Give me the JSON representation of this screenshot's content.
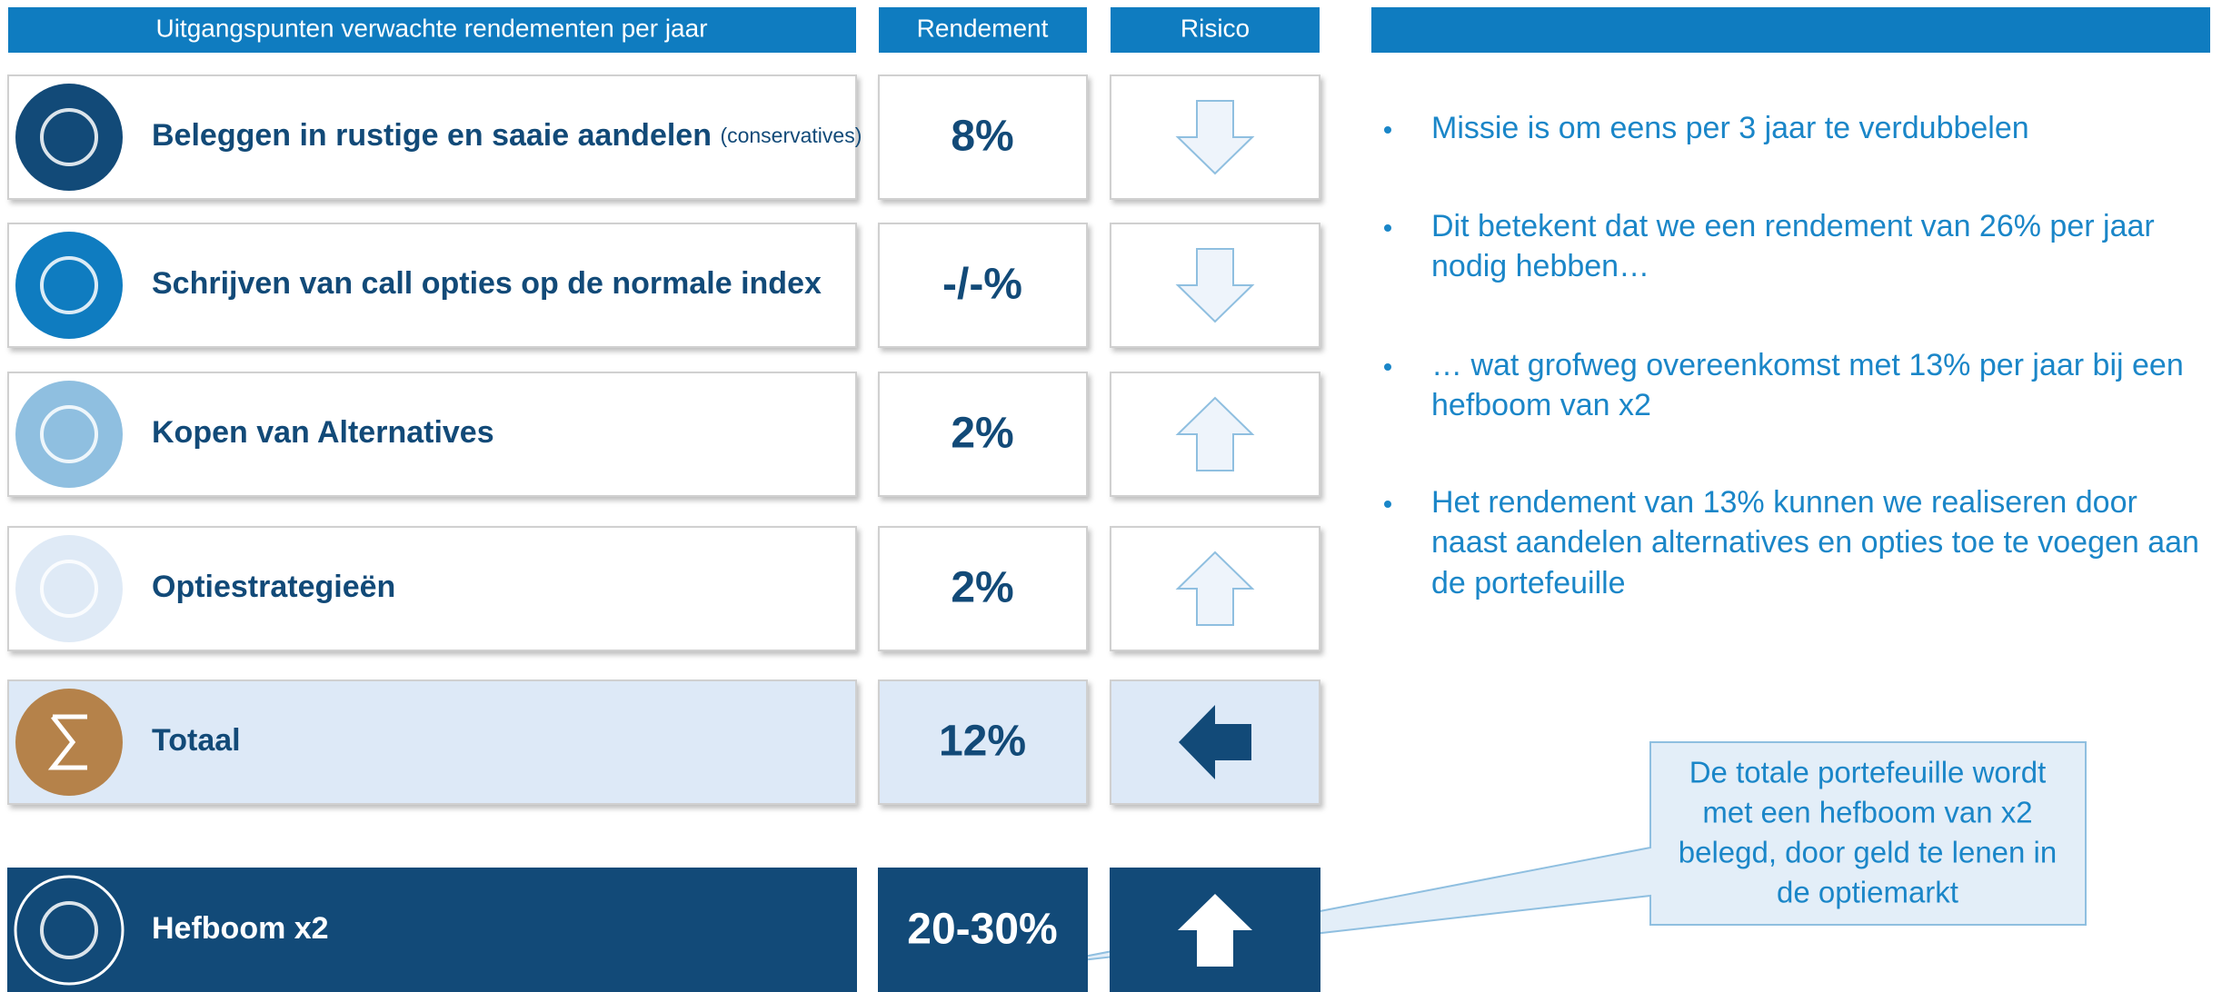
{
  "headers": [
    "Uitgangspunten verwachte rendementen per jaar",
    "Rendement",
    "Risico"
  ],
  "rows": [
    {
      "label": "Beleggen in rustige en saaie aandelen",
      "note": "(conservatives)",
      "value": "8%"
    },
    {
      "label": "Schrijven van call opties op de normale index",
      "value": "-/-%"
    },
    {
      "label": "Kopen van Alternatives",
      "value": "2%"
    },
    {
      "label": "Optiestrategieën",
      "value": "2%"
    },
    {
      "label": "Totaal",
      "value": "12%"
    },
    {
      "label": "Hefboom x2",
      "value": "20-30%"
    }
  ],
  "bullets": [
    [
      "Missie is om eens per 3 jaar te verdubbelen"
    ],
    [
      "Dit betekent dat we een rendement van 26% per jaar",
      "nodig hebben…"
    ],
    [
      "… wat grofweg overeenkomst met 13% per jaar bij een",
      "hefboom van x2"
    ],
    [
      "Het rendement van 13% kunnen we realiseren door",
      "naast aandelen alternatives en opties toe te voegen aan",
      "de portefeuille"
    ]
  ],
  "callout": [
    "De totale portefeuille wordt",
    "met een hefboom van x2",
    "belegd, door geld te lenen in",
    "de optiemarkt"
  ]
}
